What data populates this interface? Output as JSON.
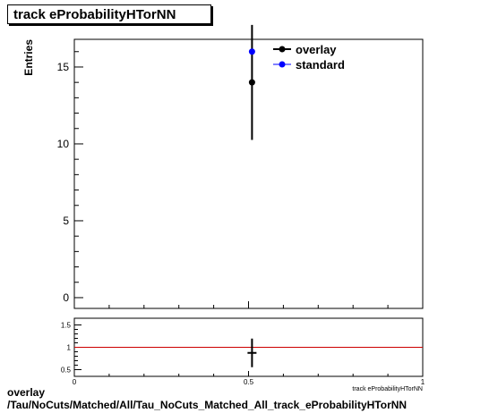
{
  "title": "track eProbabilityHTorNN",
  "footer": {
    "line1": "overlay",
    "line2": "/Tau/NoCuts/Matched/All/Tau_NoCuts_Matched_All_track_eProbabilityHTorNN"
  },
  "chart_data": [
    {
      "type": "scatter",
      "title": "track eProbabilityHTorNN",
      "ylabel": "Entries",
      "xlim": [
        0,
        1
      ],
      "ylim": [
        -0.7,
        16.8
      ],
      "y_ticks": [
        "0",
        "5",
        "10",
        "15"
      ],
      "legend": {
        "placement": "top-right",
        "entries": [
          "overlay",
          "standard"
        ]
      },
      "colors": {
        "overlay": "#000000",
        "standard": "#0000ff"
      },
      "series": [
        {
          "name": "overlay",
          "x": [
            0.51
          ],
          "values": [
            14
          ],
          "errors": [
            3.74
          ]
        },
        {
          "name": "standard",
          "x": [
            0.51
          ],
          "values": [
            16
          ]
        }
      ]
    },
    {
      "type": "scatter",
      "xlim": [
        0,
        1
      ],
      "ylim": [
        0.35,
        1.65
      ],
      "x_ticks": [
        "0",
        "0.5",
        "1"
      ],
      "y_ticks": [
        "0.5",
        "1",
        "1.5"
      ],
      "xlabel": "track eProbabilityHTorNN",
      "reference_line": {
        "y": 1,
        "color": "#cc0000"
      },
      "series": [
        {
          "x": [
            0.51
          ],
          "values": [
            0.875
          ],
          "errors": [
            0.32
          ]
        }
      ]
    }
  ]
}
